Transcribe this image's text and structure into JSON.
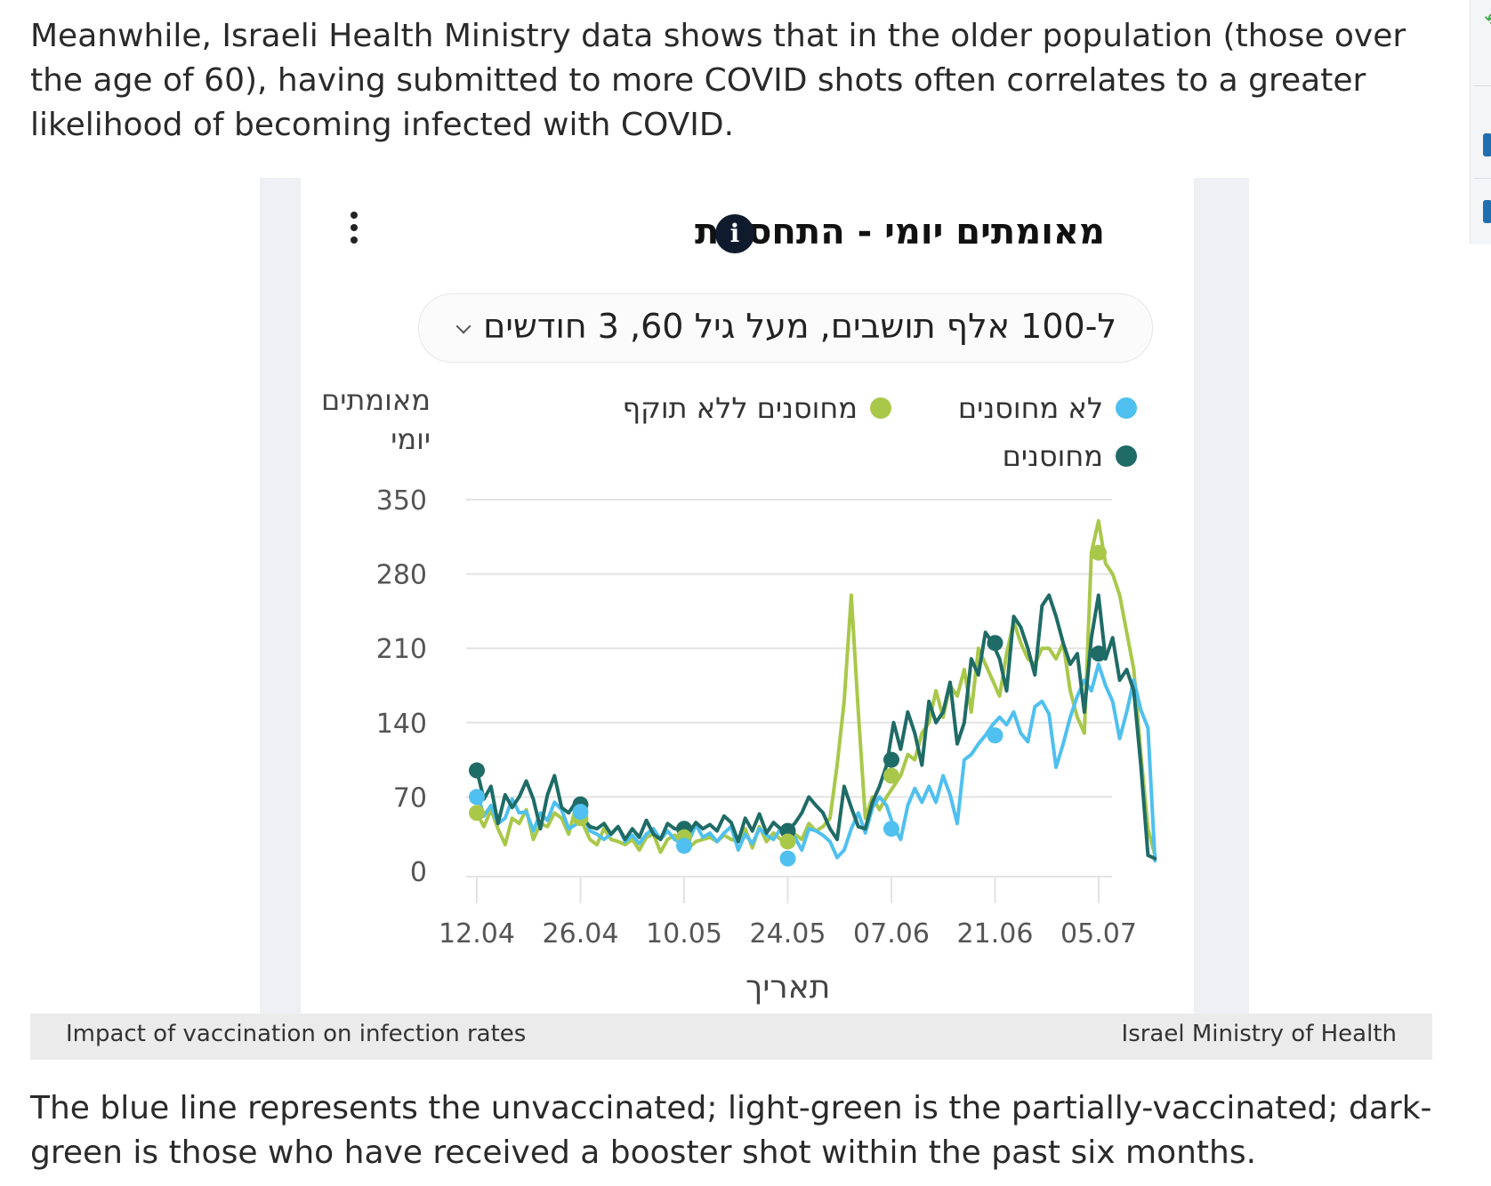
{
  "article": {
    "intro": "Meanwhile, Israeli Health Ministry data shows that in the older population (those over the age of 60), having submitted to more COVID shots often correlates to a greater likelihood of becoming infected with COVID.",
    "outro": "The blue line represents the unvaccinated; light-green is the partially-vaccinated; dark-green is those who have received a booster shot within the past six months."
  },
  "caption": {
    "left": "Impact of vaccination on infection rates",
    "right": "Israel Ministry of Health"
  },
  "card": {
    "title": "מאומתים יומי - התחסנות",
    "info_icon": "i",
    "menu_icon": "more-vertical-icon",
    "dropdown_value": "ל-100 אלף תושבים, מעל גיל 60, 3 חודשים"
  },
  "colors": {
    "unvaccinated": "#4fc0ef",
    "partial": "#a9c84a",
    "booster": "#1f6b66",
    "grid": "#e3e3e3",
    "tick_text": "#555555"
  },
  "chart_data": {
    "type": "line",
    "ylabel": "מאומתים יומי",
    "xlabel": "תאריך",
    "ylim": [
      0,
      350
    ],
    "yticks": [
      0,
      70,
      140,
      210,
      280,
      350
    ],
    "xtick_labels": [
      "12.04",
      "26.04",
      "10.05",
      "24.05",
      "07.06",
      "21.06",
      "05.07"
    ],
    "grid": true,
    "legend_placement": "top-right",
    "series": [
      {
        "name": "לא מחוסנים",
        "color_key": "unvaccinated",
        "values": [
          75,
          52,
          62,
          45,
          50,
          68,
          55,
          56,
          38,
          55,
          48,
          65,
          58,
          40,
          44,
          55,
          38,
          35,
          30,
          35,
          42,
          28,
          34,
          26,
          35,
          40,
          30,
          38,
          30,
          26,
          28,
          44,
          32,
          36,
          28,
          36,
          42,
          20,
          35,
          26,
          40,
          34,
          30,
          40,
          28,
          32,
          20,
          40,
          38,
          34,
          28,
          13,
          20,
          40,
          55,
          36,
          60,
          70,
          62,
          42,
          30,
          62,
          78,
          65,
          80,
          65,
          90,
          72,
          45,
          105,
          110,
          120,
          128,
          138,
          145,
          138,
          150,
          130,
          122,
          155,
          160,
          148,
          98,
          120,
          145,
          165,
          180,
          170,
          195,
          175,
          160,
          125,
          150,
          180,
          152,
          135,
          10
        ]
      },
      {
        "name": "מחוסנים ללא תוקף",
        "color_key": "partial",
        "values": [
          55,
          42,
          58,
          40,
          25,
          50,
          45,
          58,
          30,
          45,
          42,
          55,
          50,
          35,
          60,
          45,
          30,
          25,
          40,
          30,
          28,
          25,
          30,
          20,
          32,
          35,
          18,
          30,
          34,
          25,
          22,
          28,
          30,
          32,
          28,
          34,
          30,
          28,
          40,
          22,
          42,
          28,
          36,
          30,
          25,
          35,
          30,
          45,
          38,
          42,
          50,
          100,
          160,
          260,
          150,
          50,
          70,
          58,
          70,
          80,
          90,
          110,
          105,
          130,
          140,
          170,
          145,
          175,
          165,
          190,
          150,
          210,
          195,
          180,
          165,
          205,
          235,
          215,
          200,
          195,
          210,
          210,
          200,
          215,
          170,
          145,
          130,
          300,
          330,
          290,
          280,
          260,
          225,
          190,
          110,
          40,
          15
        ]
      },
      {
        "name": "מחוסנים",
        "color_key": "booster",
        "values": [
          95,
          68,
          80,
          45,
          72,
          60,
          70,
          85,
          68,
          40,
          72,
          90,
          60,
          55,
          65,
          50,
          42,
          40,
          45,
          35,
          42,
          30,
          40,
          32,
          48,
          35,
          30,
          45,
          40,
          40,
          36,
          46,
          40,
          44,
          38,
          52,
          46,
          28,
          50,
          38,
          54,
          36,
          46,
          40,
          38,
          45,
          55,
          70,
          62,
          55,
          40,
          30,
          80,
          60,
          42,
          40,
          65,
          80,
          100,
          140,
          115,
          150,
          130,
          100,
          160,
          140,
          150,
          178,
          120,
          140,
          200,
          185,
          225,
          215,
          200,
          170,
          240,
          230,
          210,
          185,
          250,
          260,
          240,
          215,
          195,
          205,
          150,
          220,
          260,
          200,
          220,
          180,
          190,
          170,
          100,
          15,
          12
        ]
      }
    ],
    "markers": [
      {
        "series": 2,
        "date": "12.04",
        "value": 95
      },
      {
        "series": 1,
        "date": "12.04",
        "value": 55
      },
      {
        "series": 0,
        "date": "12.04",
        "value": 70
      },
      {
        "series": 2,
        "date": "26.04",
        "value": 63
      },
      {
        "series": 1,
        "date": "26.04",
        "value": 50
      },
      {
        "series": 0,
        "date": "26.04",
        "value": 56
      },
      {
        "series": 2,
        "date": "10.05",
        "value": 40
      },
      {
        "series": 1,
        "date": "10.05",
        "value": 32
      },
      {
        "series": 0,
        "date": "10.05",
        "value": 24
      },
      {
        "series": 2,
        "date": "24.05",
        "value": 38
      },
      {
        "series": 1,
        "date": "24.05",
        "value": 28
      },
      {
        "series": 0,
        "date": "24.05",
        "value": 12
      },
      {
        "series": 2,
        "date": "07.06",
        "value": 105
      },
      {
        "series": 1,
        "date": "07.06",
        "value": 90
      },
      {
        "series": 0,
        "date": "07.06",
        "value": 40
      },
      {
        "series": 2,
        "date": "21.06",
        "value": 215
      },
      {
        "series": 0,
        "date": "21.06",
        "value": 128
      },
      {
        "series": 1,
        "date": "05.07",
        "value": 300
      },
      {
        "series": 2,
        "date": "05.07",
        "value": 205
      }
    ]
  }
}
